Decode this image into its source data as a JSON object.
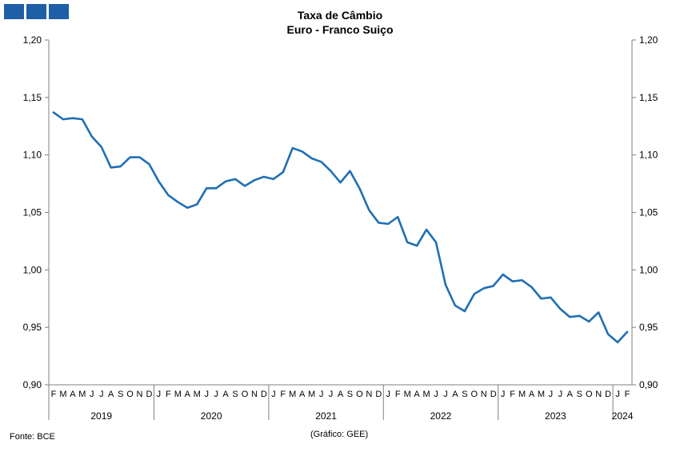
{
  "header": {
    "title": "Taxa de Câmbio",
    "subtitle": "Euro - Franco Suiço"
  },
  "footer": {
    "source": "Fonte: BCE",
    "credit": "(Gráfico: GEE)"
  },
  "colors": {
    "line": "#1f6fb4",
    "logo": "#1f5fa8",
    "axis": "#808080"
  },
  "chart_data": {
    "type": "line",
    "title": "Taxa de Câmbio",
    "subtitle": "Euro - Franco Suiço",
    "ylim": [
      0.9,
      1.2
    ],
    "y_ticks": [
      "0,90",
      "0,95",
      "1,00",
      "1,05",
      "1,10",
      "1,15",
      "1,20"
    ],
    "y_tick_values": [
      0.9,
      0.95,
      1.0,
      1.05,
      1.1,
      1.15,
      1.2
    ],
    "y_axis_right": true,
    "grid": false,
    "legend": "none",
    "month_labels": [
      "F",
      "M",
      "A",
      "M",
      "J",
      "J",
      "A",
      "S",
      "O",
      "N",
      "D",
      "J",
      "F",
      "M",
      "A",
      "M",
      "J",
      "J",
      "A",
      "S",
      "O",
      "N",
      "D",
      "J",
      "F",
      "M",
      "A",
      "M",
      "J",
      "J",
      "A",
      "S",
      "O",
      "N",
      "D",
      "J",
      "F",
      "M",
      "A",
      "M",
      "J",
      "J",
      "A",
      "S",
      "O",
      "N",
      "D",
      "J",
      "F",
      "M",
      "A",
      "M",
      "J",
      "J",
      "A",
      "S",
      "O",
      "N",
      "D",
      "J",
      "F"
    ],
    "years": [
      {
        "label": "2019",
        "start": 0,
        "end": 10
      },
      {
        "label": "2020",
        "start": 11,
        "end": 22
      },
      {
        "label": "2021",
        "start": 23,
        "end": 34
      },
      {
        "label": "2022",
        "start": 35,
        "end": 46
      },
      {
        "label": "2023",
        "start": 47,
        "end": 58
      },
      {
        "label": "2024",
        "start": 59,
        "end": 60
      }
    ],
    "series": [
      {
        "values": [
          1.137,
          1.131,
          1.132,
          1.131,
          1.116,
          1.107,
          1.089,
          1.09,
          1.098,
          1.098,
          1.092,
          1.077,
          1.065,
          1.059,
          1.054,
          1.057,
          1.071,
          1.071,
          1.077,
          1.079,
          1.073,
          1.078,
          1.081,
          1.079,
          1.085,
          1.106,
          1.103,
          1.097,
          1.094,
          1.086,
          1.076,
          1.086,
          1.071,
          1.052,
          1.041,
          1.04,
          1.046,
          1.024,
          1.021,
          1.035,
          1.024,
          0.987,
          0.969,
          0.964,
          0.979,
          0.984,
          0.986,
          0.996,
          0.99,
          0.991,
          0.985,
          0.975,
          0.976,
          0.966,
          0.959,
          0.96,
          0.955,
          0.963,
          0.944,
          0.937,
          0.946
        ]
      }
    ]
  }
}
